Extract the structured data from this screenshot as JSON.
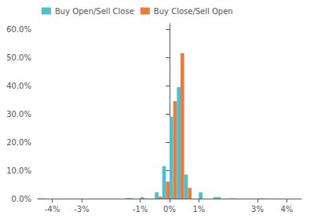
{
  "chart_data": {
    "type": "bar",
    "bins": [
      -0.045,
      -0.04,
      -0.035,
      -0.03,
      -0.025,
      -0.02,
      -0.015,
      -0.01,
      -0.0075,
      -0.005,
      -0.0025,
      0.0,
      0.0025,
      0.005,
      0.0075,
      0.01,
      0.0125,
      0.015,
      0.02,
      0.025,
      0.03,
      0.035,
      0.04,
      0.045
    ],
    "series": [
      {
        "name": "Buy Open/Sell Close",
        "color": "#4dbfcf",
        "values": [
          0.001,
          0.0,
          0.0,
          0.0,
          0.0,
          0.0,
          0.002,
          0.005,
          0.0,
          0.022,
          0.115,
          0.29,
          0.395,
          0.085,
          0.0,
          0.022,
          0.0,
          0.005,
          0.001,
          0.0,
          0.001,
          0.0,
          0.0
        ]
      },
      {
        "name": "Buy Close/Sell Open",
        "color": "#e87d3e",
        "values": [
          0.0,
          0.0,
          0.0,
          0.0,
          0.0,
          0.0,
          0.0,
          0.001,
          0.0,
          0.007,
          0.06,
          0.345,
          0.515,
          0.038,
          0.0,
          0.0,
          0.0,
          0.0,
          0.0,
          0.0,
          0.0,
          0.0,
          0.0
        ]
      }
    ],
    "xlim": [
      -0.045,
      0.045
    ],
    "xticks": [
      {
        "value": -0.04,
        "label": "-4%"
      },
      {
        "value": -0.03,
        "label": "-3%"
      },
      {
        "value": -0.01,
        "label": "-1%"
      },
      {
        "value": 0.0,
        "label": "0%"
      },
      {
        "value": 0.01,
        "label": "1%"
      },
      {
        "value": 0.03,
        "label": "3%"
      },
      {
        "value": 0.04,
        "label": "4%"
      }
    ],
    "ylim": [
      0.0,
      0.62
    ],
    "yticks": [
      {
        "value": 0.0,
        "label": "0.0%"
      },
      {
        "value": 0.1,
        "label": "10.0%"
      },
      {
        "value": 0.2,
        "label": "20.0%"
      },
      {
        "value": 0.3,
        "label": "30.0%"
      },
      {
        "value": 0.4,
        "label": "40.0%"
      },
      {
        "value": 0.5,
        "label": "50.0%"
      },
      {
        "value": 0.6,
        "label": "60.0%"
      }
    ],
    "grid": false,
    "legend": "upper left"
  }
}
